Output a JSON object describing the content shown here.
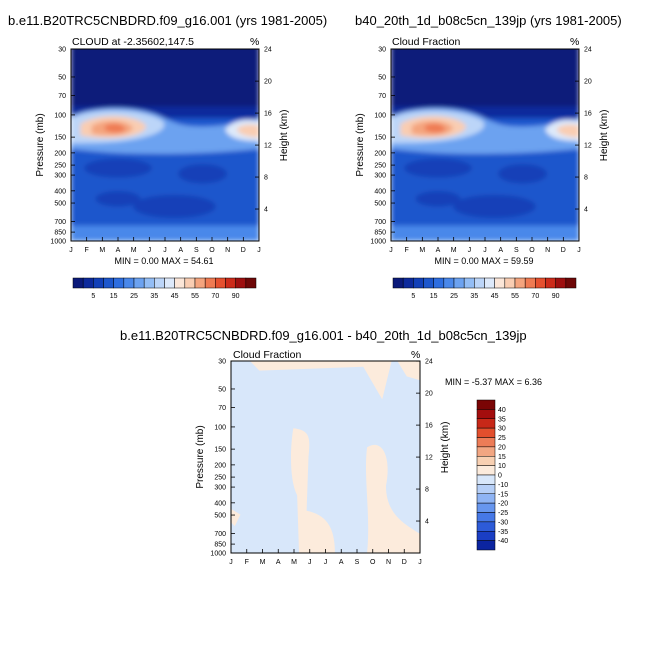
{
  "colors": {
    "seq": [
      "#0b1a7a",
      "#0d2a9c",
      "#1240b8",
      "#1d57cc",
      "#2e6ee0",
      "#4a88ea",
      "#6ca2f0",
      "#93bdf5",
      "#bcd5f8",
      "#dde9fa",
      "#fbe6d8",
      "#f9cdb2",
      "#f4a47e",
      "#ef7a52",
      "#e5502f",
      "#cc2b1a",
      "#9e0f0f",
      "#6e0707"
    ],
    "div": [
      "#030c6e",
      "#0b24a0",
      "#1a3ec4",
      "#2d5bd8",
      "#4678e6",
      "#6796ee",
      "#8fb4f4",
      "#b6cff7",
      "#d8e7fa",
      "#fcebdc",
      "#f8d0b2",
      "#f2a682",
      "#ed7c57",
      "#e24f2d",
      "#c72818",
      "#a30d0d",
      "#7a0505"
    ]
  },
  "panels": {
    "left": {
      "title": "b.e11.B20TRC5CNBDRD.f09_g16.001 (yrs 1981-2005)",
      "subtitle_left": "CLOUD at -2.35602,147.5",
      "units": "%",
      "stats": "MIN =   0.00 MAX =  54.61"
    },
    "right": {
      "title": "b40_20th_1d_b08c5cn_139jp (yrs 1981-2005)",
      "subtitle_left": "Cloud Fraction",
      "units": "%",
      "stats": "MIN =   0.00 MAX =  59.59"
    },
    "diff": {
      "title": "b.e11.B20TRC5CNBDRD.f09_g16.001 - b40_20th_1d_b08c5cn_139jp",
      "subtitle_left": "Cloud Fraction",
      "units": "%",
      "stats": "MIN =  -5.37 MAX =   6.36"
    }
  },
  "chart_data": [
    {
      "type": "heatmap",
      "title": "b.e11.B20TRC5CNBDRD.f09_g16.001 (yrs 1981-2005)",
      "subtitle": "CLOUD at -2.35602,147.5",
      "units": "%",
      "x": [
        "J",
        "F",
        "M",
        "A",
        "M",
        "J",
        "J",
        "A",
        "S",
        "O",
        "N",
        "D",
        "J"
      ],
      "ylabel": "Pressure (mb)",
      "yticks": [
        30,
        50,
        70,
        100,
        150,
        200,
        250,
        300,
        400,
        500,
        700,
        850,
        1000
      ],
      "y2label": "Height (km)",
      "y2ticks": [
        24,
        20,
        16,
        12,
        8,
        4
      ],
      "colorbar_labels": [
        "5",
        "15",
        "25",
        "35",
        "45",
        "55",
        "70",
        "90"
      ],
      "min": 0.0,
      "max": 54.61
    },
    {
      "type": "heatmap",
      "title": "b40_20th_1d_b08c5cn_139jp (yrs 1981-2005)",
      "subtitle": "Cloud Fraction",
      "units": "%",
      "x": [
        "J",
        "F",
        "M",
        "A",
        "M",
        "J",
        "J",
        "A",
        "S",
        "O",
        "N",
        "D",
        "J"
      ],
      "ylabel": "Pressure (mb)",
      "yticks": [
        30,
        50,
        70,
        100,
        150,
        200,
        250,
        300,
        400,
        500,
        700,
        850,
        1000
      ],
      "y2label": "Height (km)",
      "y2ticks": [
        24,
        20,
        16,
        12,
        8,
        4
      ],
      "colorbar_labels": [
        "5",
        "15",
        "25",
        "35",
        "45",
        "55",
        "70",
        "90"
      ],
      "min": 0.0,
      "max": 59.59
    },
    {
      "type": "heatmap",
      "title": "b.e11.B20TRC5CNBDRD.f09_g16.001 - b40_20th_1d_b08c5cn_139jp",
      "subtitle": "Cloud Fraction",
      "units": "%",
      "x": [
        "J",
        "F",
        "M",
        "A",
        "M",
        "J",
        "J",
        "A",
        "S",
        "O",
        "N",
        "D",
        "J"
      ],
      "ylabel": "Pressure (mb)",
      "yticks": [
        30,
        50,
        70,
        100,
        150,
        200,
        250,
        300,
        400,
        500,
        700,
        850,
        1000
      ],
      "y2label": "Height (km)",
      "y2ticks": [
        24,
        20,
        16,
        12,
        8,
        4
      ],
      "colorbar_labels": [
        "40",
        "35",
        "30",
        "25",
        "20",
        "15",
        "10",
        "0",
        "-10",
        "-15",
        "-20",
        "-25",
        "-30",
        "-35",
        "-40"
      ],
      "min": -5.37,
      "max": 6.36
    }
  ]
}
